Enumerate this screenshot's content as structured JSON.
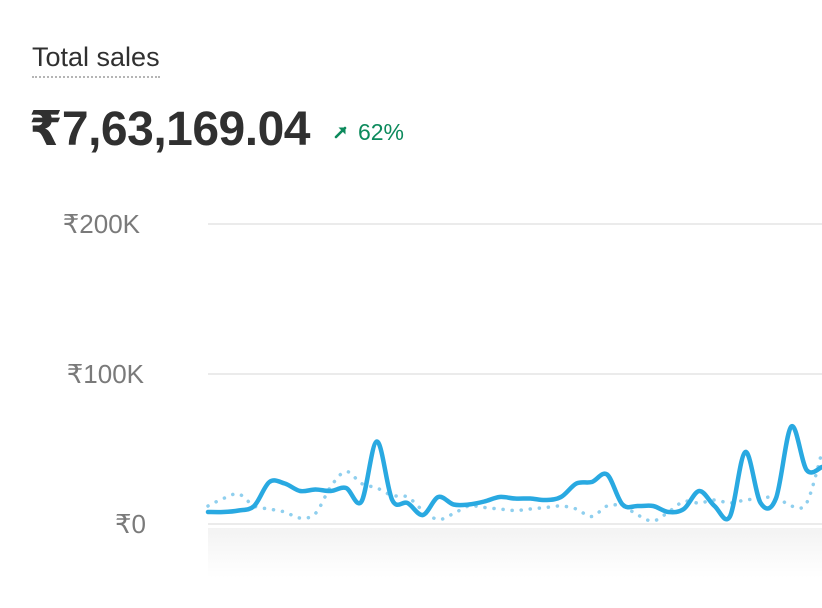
{
  "card": {
    "title": "Total sales",
    "value": "₹7,63,169.04",
    "change": "62%",
    "change_direction": "up",
    "change_icon": "arrow-up-right-icon"
  },
  "colors": {
    "primary_series": "#29a9e1",
    "comparison_series": "#8fcfee",
    "positive_change": "#0c8a5c",
    "grid": "#ebebeb"
  },
  "chart_data": {
    "type": "line",
    "y_ticks": [
      "₹200K",
      "₹100K",
      "₹0"
    ],
    "ylim": [
      0,
      200000
    ],
    "grid": true,
    "legend": "none",
    "series": [
      {
        "style": "solid",
        "values": [
          8000,
          8000,
          9000,
          12000,
          28000,
          27000,
          22000,
          23000,
          22000,
          24000,
          15000,
          55000,
          16000,
          14000,
          6000,
          18000,
          13000,
          13000,
          15000,
          18000,
          17000,
          17000,
          16000,
          18000,
          27000,
          28000,
          33000,
          13000,
          12000,
          12000,
          8000,
          10000,
          22000,
          12000,
          5000,
          48000,
          14000,
          17000,
          65000,
          36000,
          38000
        ]
      },
      {
        "style": "dotted",
        "values": [
          12000,
          17000,
          20000,
          12000,
          10000,
          8000,
          4000,
          7000,
          25000,
          35000,
          27000,
          24000,
          19000,
          18000,
          9000,
          3000,
          7000,
          12000,
          11000,
          10000,
          9000,
          10000,
          11000,
          12000,
          10000,
          5000,
          12000,
          12000,
          6000,
          2000,
          8000,
          15000,
          14000,
          16000,
          14000,
          16000,
          17000,
          18000,
          12000,
          14000,
          48000
        ]
      }
    ]
  }
}
